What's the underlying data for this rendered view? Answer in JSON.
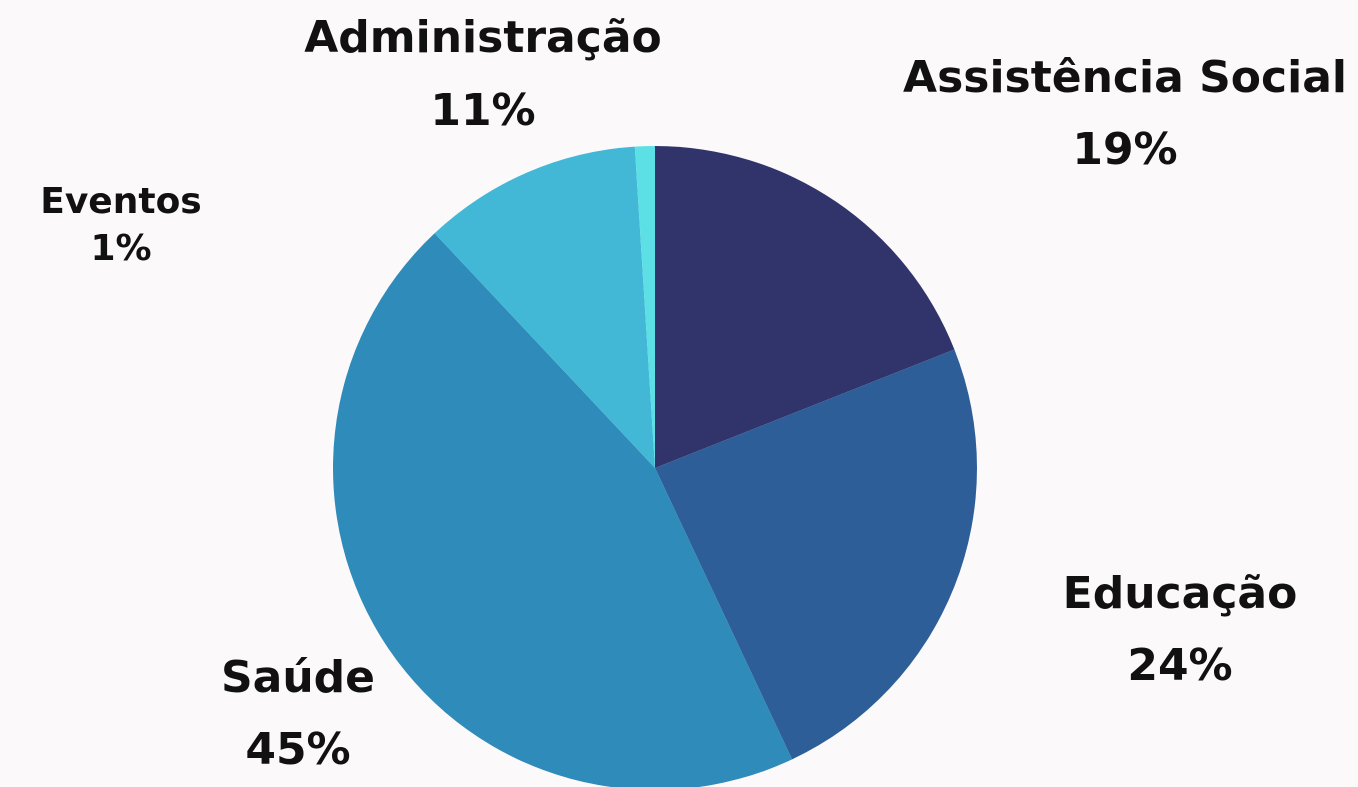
{
  "chart_data": {
    "type": "pie",
    "categories": [
      "Assistência Social",
      "Educação",
      "Saúde",
      "Administração",
      "Eventos"
    ],
    "values": [
      19,
      24,
      45,
      11,
      1
    ],
    "value_labels": [
      "19%",
      "24%",
      "45%",
      "11%",
      "1%"
    ],
    "colors": [
      "#31346b",
      "#2e5e98",
      "#2e8bba",
      "#42b8d6",
      "#5ce0e6"
    ]
  }
}
